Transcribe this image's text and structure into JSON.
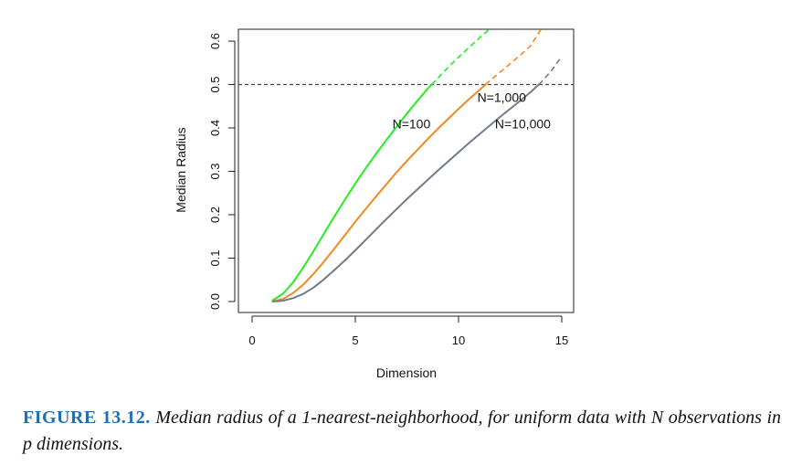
{
  "chart_data": {
    "type": "line",
    "xlabel": "Dimension",
    "ylabel": "Median Radius",
    "xlim": [
      0,
      15
    ],
    "ylim": [
      0,
      0.6
    ],
    "xticks": [
      "0",
      "5",
      "10",
      "15"
    ],
    "yticks": [
      "0.0",
      "0.1",
      "0.2",
      "0.3",
      "0.4",
      "0.5",
      "0.6"
    ],
    "reference_line": {
      "y": 0.5,
      "style": "dashed",
      "color": "#444444"
    },
    "series": [
      {
        "name": "N=100",
        "color": "#22ee22",
        "x": [
          1,
          1.5,
          2,
          2.5,
          3,
          3.5,
          4,
          4.5,
          5,
          5.5,
          6,
          6.5,
          7,
          7.5,
          8,
          8.5,
          9,
          9.5,
          10,
          10.5,
          11,
          11.5
        ],
        "y": [
          0.003,
          0.018,
          0.045,
          0.08,
          0.118,
          0.158,
          0.197,
          0.235,
          0.272,
          0.307,
          0.34,
          0.372,
          0.403,
          0.433,
          0.462,
          0.49,
          0.515,
          0.54,
          0.563,
          0.585,
          0.607,
          0.628
        ]
      },
      {
        "name": "N=1,000",
        "color": "#f08a1c",
        "x": [
          1,
          1.5,
          2,
          2.5,
          3,
          3.5,
          4,
          4.5,
          5,
          5.5,
          6,
          6.5,
          7,
          7.5,
          8,
          8.5,
          9,
          9.5,
          10,
          10.5,
          11,
          11.5,
          12,
          12.5,
          13,
          13.5,
          14
        ],
        "y": [
          0.0005,
          0.006,
          0.02,
          0.04,
          0.065,
          0.093,
          0.123,
          0.153,
          0.184,
          0.213,
          0.242,
          0.27,
          0.298,
          0.324,
          0.349,
          0.374,
          0.398,
          0.421,
          0.444,
          0.466,
          0.487,
          0.508,
          0.528,
          0.548,
          0.568,
          0.59,
          0.628
        ]
      },
      {
        "name": "N=10,000",
        "color": "#6f7c8e",
        "x": [
          1,
          1.5,
          2,
          2.5,
          3,
          3.5,
          4,
          4.5,
          5,
          5.5,
          6,
          6.5,
          7,
          7.5,
          8,
          8.5,
          9,
          9.5,
          10,
          10.5,
          11,
          11.5,
          12,
          12.5,
          13,
          13.5,
          14,
          14.5,
          15
        ],
        "y": [
          0.0001,
          0.002,
          0.008,
          0.018,
          0.033,
          0.052,
          0.073,
          0.095,
          0.118,
          0.142,
          0.166,
          0.19,
          0.213,
          0.236,
          0.258,
          0.28,
          0.302,
          0.323,
          0.344,
          0.365,
          0.385,
          0.405,
          0.425,
          0.444,
          0.463,
          0.483,
          0.505,
          0.532,
          0.565
        ]
      }
    ],
    "annotations": [
      {
        "text": "N=100",
        "series": "N=100"
      },
      {
        "text": "N=1,000",
        "series": "N=1,000"
      },
      {
        "text": "N=10,000",
        "series": "N=10,000"
      }
    ]
  },
  "caption": {
    "label": "FIGURE 13.12.",
    "text": "Median radius of a 1-nearest-neighborhood, for uniform data with N observations in p dimensions."
  }
}
